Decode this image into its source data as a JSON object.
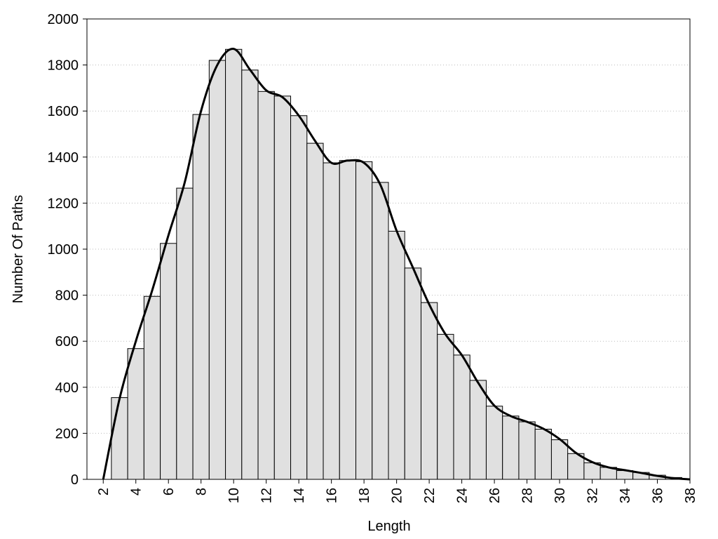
{
  "chart_data": {
    "type": "histogram",
    "x_label": "Length",
    "y_label": "Number Of Paths",
    "bins": [
      2.5,
      3.5,
      4.5,
      5.5,
      6.5,
      7.5,
      8.5,
      9.5,
      10.5,
      11.5,
      12.5,
      13.5,
      14.5,
      15.5,
      16.5,
      17.5,
      18.5,
      19.5,
      20.5,
      21.5,
      22.5,
      23.5,
      24.5,
      25.5,
      26.5,
      27.5,
      28.5,
      29.5,
      30.5,
      31.5,
      32.5,
      33.5,
      34.5,
      35.5,
      36.5,
      37.5
    ],
    "counts": [
      355,
      568,
      795,
      1025,
      1265,
      1585,
      1820,
      1868,
      1778,
      1685,
      1665,
      1580,
      1460,
      1375,
      1385,
      1380,
      1290,
      1078,
      918,
      768,
      630,
      540,
      430,
      318,
      275,
      250,
      218,
      172,
      112,
      72,
      52,
      38,
      30,
      18,
      8
    ],
    "color": "#e0e0e0",
    "line": {
      "color": "#000000",
      "x": [
        2,
        3,
        4,
        5,
        6,
        7,
        8,
        9,
        10,
        11,
        12,
        13,
        14,
        15,
        16,
        17,
        18,
        19,
        20,
        21,
        22,
        23,
        24,
        25,
        26,
        27,
        28,
        29,
        30,
        31,
        32,
        33,
        34,
        35,
        36,
        37,
        38
      ],
      "values": [
        0,
        350,
        600,
        820,
        1060,
        1290,
        1600,
        1800,
        1870,
        1780,
        1690,
        1660,
        1580,
        1470,
        1375,
        1385,
        1375,
        1280,
        1080,
        920,
        760,
        630,
        540,
        420,
        320,
        275,
        250,
        220,
        175,
        115,
        75,
        52,
        40,
        28,
        15,
        5,
        0
      ]
    },
    "xlim": [
      1,
      38
    ],
    "ylim": [
      0,
      2000
    ],
    "xticks": [
      2,
      4,
      6,
      8,
      10,
      12,
      14,
      16,
      18,
      20,
      22,
      24,
      26,
      28,
      30,
      32,
      34,
      36,
      38
    ],
    "yticks": [
      0,
      200,
      400,
      600,
      800,
      1000,
      1200,
      1400,
      1600,
      1800,
      2000
    ],
    "grid": true
  }
}
